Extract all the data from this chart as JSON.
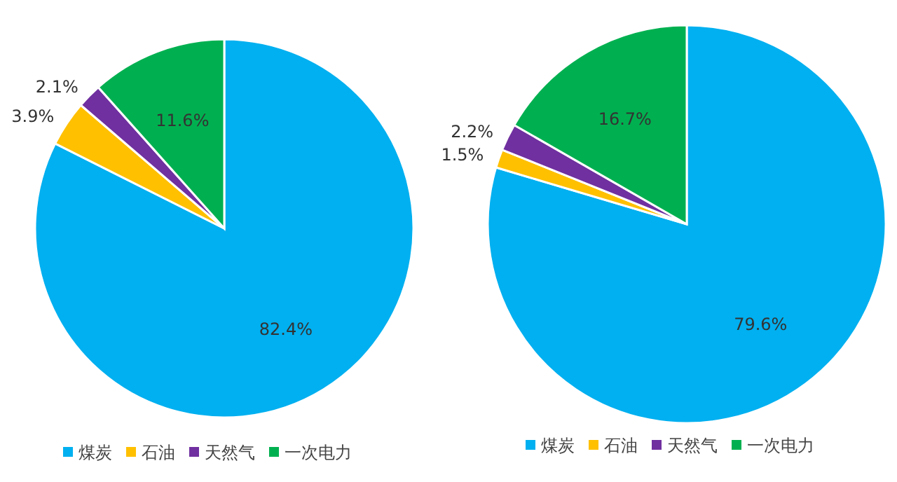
{
  "chart_data": [
    {
      "type": "pie",
      "categories": [
        "煤炭",
        "石油",
        "天然气",
        "一次电力"
      ],
      "values": [
        82.4,
        3.9,
        2.1,
        11.6
      ],
      "value_labels": [
        "82.4%",
        "3.9%",
        "2.1%",
        "11.6%"
      ],
      "colors": [
        "#00b0f0",
        "#ffc000",
        "#7030a0",
        "#00b050"
      ],
      "legend": "bottom"
    },
    {
      "type": "pie",
      "categories": [
        "煤炭",
        "石油",
        "天然气",
        "一次电力"
      ],
      "values": [
        79.6,
        1.5,
        2.2,
        16.7
      ],
      "value_labels": [
        "79.6%",
        "1.5%",
        "2.2%",
        "16.7%"
      ],
      "colors": [
        "#00b0f0",
        "#ffc000",
        "#7030a0",
        "#00b050"
      ],
      "legend": "bottom"
    }
  ]
}
